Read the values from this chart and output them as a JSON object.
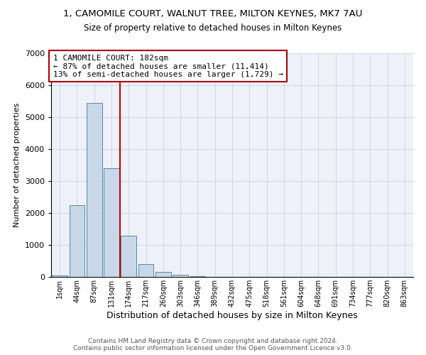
{
  "title": "1, CAMOMILE COURT, WALNUT TREE, MILTON KEYNES, MK7 7AU",
  "subtitle": "Size of property relative to detached houses in Milton Keynes",
  "xlabel": "Distribution of detached houses by size in Milton Keynes",
  "ylabel": "Number of detached properties",
  "footer1": "Contains HM Land Registry data © Crown copyright and database right 2024.",
  "footer2": "Contains public sector information licensed under the Open Government Licence v3.0.",
  "bar_labels": [
    "1sqm",
    "44sqm",
    "87sqm",
    "131sqm",
    "174sqm",
    "217sqm",
    "260sqm",
    "303sqm",
    "346sqm",
    "389sqm",
    "432sqm",
    "475sqm",
    "518sqm",
    "561sqm",
    "604sqm",
    "648sqm",
    "691sqm",
    "734sqm",
    "777sqm",
    "820sqm",
    "863sqm"
  ],
  "bar_values": [
    50,
    2250,
    5450,
    3400,
    1300,
    400,
    150,
    75,
    15,
    5,
    2,
    1,
    0,
    0,
    0,
    0,
    0,
    0,
    0,
    0,
    0
  ],
  "bar_color": "#c8d8e8",
  "bar_edge_color": "#5588aa",
  "grid_color": "#d0d8e8",
  "bg_color": "#eef2f8",
  "vline_color": "#cc0000",
  "vline_x_index": 3.5,
  "annotation_text": "1 CAMOMILE COURT: 182sqm\n← 87% of detached houses are smaller (11,414)\n13% of semi-detached houses are larger (1,729) →",
  "annotation_box_color": "#aa0000",
  "ylim": [
    0,
    7000
  ],
  "yticks": [
    0,
    1000,
    2000,
    3000,
    4000,
    5000,
    6000,
    7000
  ]
}
